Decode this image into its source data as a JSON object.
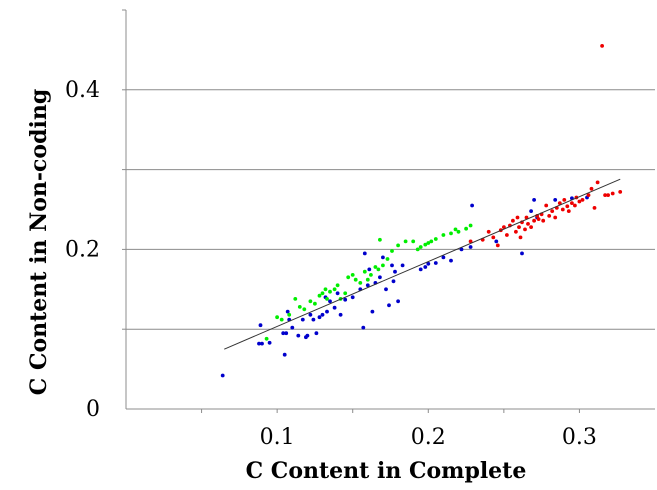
{
  "chart_data": {
    "type": "scatter",
    "xlabel": "C Content in Complete",
    "ylabel": "C Content in Non-coding",
    "xlim": [
      0,
      0.35
    ],
    "ylim": [
      0,
      0.5
    ],
    "xticks": [
      0.1,
      0.2,
      0.3
    ],
    "xtick_labels": [
      "0.1",
      "0.2",
      "0.3"
    ],
    "yticks": [
      0,
      0.2,
      0.4
    ],
    "ytick_labels": [
      "0",
      "0.2",
      "0.4"
    ],
    "ygrid": [
      0.1,
      0.2,
      0.3,
      0.4
    ],
    "grid": "horizontal",
    "legend": "none",
    "trendline": {
      "x": [
        0.065,
        0.327
      ],
      "y": [
        0.075,
        0.288
      ],
      "color": "#333333"
    },
    "series": [
      {
        "color": "#0000cc",
        "points": [
          [
            0.064,
            0.042
          ],
          [
            0.088,
            0.082
          ],
          [
            0.09,
            0.082
          ],
          [
            0.089,
            0.105
          ],
          [
            0.095,
            0.083
          ],
          [
            0.104,
            0.095
          ],
          [
            0.105,
            0.068
          ],
          [
            0.106,
            0.095
          ],
          [
            0.107,
            0.122
          ],
          [
            0.108,
            0.112
          ],
          [
            0.11,
            0.102
          ],
          [
            0.114,
            0.092
          ],
          [
            0.117,
            0.112
          ],
          [
            0.119,
            0.09
          ],
          [
            0.12,
            0.092
          ],
          [
            0.122,
            0.118
          ],
          [
            0.124,
            0.112
          ],
          [
            0.126,
            0.095
          ],
          [
            0.128,
            0.115
          ],
          [
            0.13,
            0.118
          ],
          [
            0.132,
            0.14
          ],
          [
            0.133,
            0.122
          ],
          [
            0.135,
            0.135
          ],
          [
            0.138,
            0.127
          ],
          [
            0.14,
            0.145
          ],
          [
            0.142,
            0.118
          ],
          [
            0.145,
            0.137
          ],
          [
            0.15,
            0.14
          ],
          [
            0.155,
            0.15
          ],
          [
            0.157,
            0.102
          ],
          [
            0.158,
            0.195
          ],
          [
            0.16,
            0.155
          ],
          [
            0.161,
            0.175
          ],
          [
            0.163,
            0.122
          ],
          [
            0.165,
            0.158
          ],
          [
            0.168,
            0.165
          ],
          [
            0.17,
            0.19
          ],
          [
            0.172,
            0.15
          ],
          [
            0.174,
            0.13
          ],
          [
            0.176,
            0.18
          ],
          [
            0.177,
            0.16
          ],
          [
            0.178,
            0.172
          ],
          [
            0.18,
            0.135
          ],
          [
            0.183,
            0.18
          ],
          [
            0.195,
            0.175
          ],
          [
            0.198,
            0.178
          ],
          [
            0.2,
            0.182
          ],
          [
            0.205,
            0.183
          ],
          [
            0.21,
            0.19
          ],
          [
            0.215,
            0.186
          ],
          [
            0.222,
            0.2
          ],
          [
            0.228,
            0.203
          ],
          [
            0.229,
            0.255
          ],
          [
            0.245,
            0.21
          ],
          [
            0.262,
            0.195
          ],
          [
            0.268,
            0.248
          ],
          [
            0.27,
            0.262
          ],
          [
            0.272,
            0.24
          ],
          [
            0.284,
            0.262
          ],
          [
            0.295,
            0.264
          ],
          [
            0.305,
            0.265
          ]
        ]
      },
      {
        "color": "#00ee00",
        "points": [
          [
            0.093,
            0.088
          ],
          [
            0.1,
            0.115
          ],
          [
            0.103,
            0.112
          ],
          [
            0.108,
            0.118
          ],
          [
            0.112,
            0.138
          ],
          [
            0.115,
            0.128
          ],
          [
            0.118,
            0.125
          ],
          [
            0.122,
            0.135
          ],
          [
            0.125,
            0.132
          ],
          [
            0.128,
            0.142
          ],
          [
            0.13,
            0.145
          ],
          [
            0.132,
            0.15
          ],
          [
            0.133,
            0.138
          ],
          [
            0.135,
            0.147
          ],
          [
            0.138,
            0.15
          ],
          [
            0.14,
            0.155
          ],
          [
            0.142,
            0.138
          ],
          [
            0.145,
            0.145
          ],
          [
            0.147,
            0.165
          ],
          [
            0.15,
            0.168
          ],
          [
            0.152,
            0.162
          ],
          [
            0.155,
            0.158
          ],
          [
            0.158,
            0.172
          ],
          [
            0.16,
            0.162
          ],
          [
            0.162,
            0.168
          ],
          [
            0.165,
            0.178
          ],
          [
            0.167,
            0.175
          ],
          [
            0.168,
            0.212
          ],
          [
            0.17,
            0.18
          ],
          [
            0.173,
            0.188
          ],
          [
            0.176,
            0.198
          ],
          [
            0.18,
            0.205
          ],
          [
            0.185,
            0.21
          ],
          [
            0.19,
            0.21
          ],
          [
            0.193,
            0.2
          ],
          [
            0.195,
            0.203
          ],
          [
            0.198,
            0.206
          ],
          [
            0.2,
            0.208
          ],
          [
            0.202,
            0.21
          ],
          [
            0.205,
            0.213
          ],
          [
            0.21,
            0.218
          ],
          [
            0.215,
            0.22
          ],
          [
            0.218,
            0.225
          ],
          [
            0.22,
            0.222
          ],
          [
            0.225,
            0.226
          ],
          [
            0.228,
            0.23
          ]
        ]
      },
      {
        "color": "#ee0000",
        "points": [
          [
            0.228,
            0.21
          ],
          [
            0.236,
            0.212
          ],
          [
            0.24,
            0.222
          ],
          [
            0.243,
            0.215
          ],
          [
            0.246,
            0.205
          ],
          [
            0.248,
            0.224
          ],
          [
            0.25,
            0.228
          ],
          [
            0.252,
            0.218
          ],
          [
            0.254,
            0.23
          ],
          [
            0.256,
            0.236
          ],
          [
            0.258,
            0.222
          ],
          [
            0.259,
            0.24
          ],
          [
            0.26,
            0.228
          ],
          [
            0.261,
            0.215
          ],
          [
            0.262,
            0.234
          ],
          [
            0.264,
            0.225
          ],
          [
            0.265,
            0.24
          ],
          [
            0.266,
            0.232
          ],
          [
            0.268,
            0.228
          ],
          [
            0.27,
            0.236
          ],
          [
            0.272,
            0.242
          ],
          [
            0.273,
            0.238
          ],
          [
            0.275,
            0.244
          ],
          [
            0.276,
            0.236
          ],
          [
            0.278,
            0.255
          ],
          [
            0.28,
            0.242
          ],
          [
            0.282,
            0.248
          ],
          [
            0.284,
            0.24
          ],
          [
            0.285,
            0.252
          ],
          [
            0.287,
            0.258
          ],
          [
            0.289,
            0.25
          ],
          [
            0.29,
            0.262
          ],
          [
            0.292,
            0.254
          ],
          [
            0.293,
            0.248
          ],
          [
            0.295,
            0.258
          ],
          [
            0.297,
            0.255
          ],
          [
            0.298,
            0.265
          ],
          [
            0.3,
            0.26
          ],
          [
            0.302,
            0.262
          ],
          [
            0.306,
            0.268
          ],
          [
            0.308,
            0.276
          ],
          [
            0.31,
            0.252
          ],
          [
            0.312,
            0.284
          ],
          [
            0.315,
            0.455
          ],
          [
            0.317,
            0.268
          ],
          [
            0.319,
            0.268
          ],
          [
            0.322,
            0.27
          ],
          [
            0.327,
            0.272
          ]
        ]
      }
    ]
  }
}
